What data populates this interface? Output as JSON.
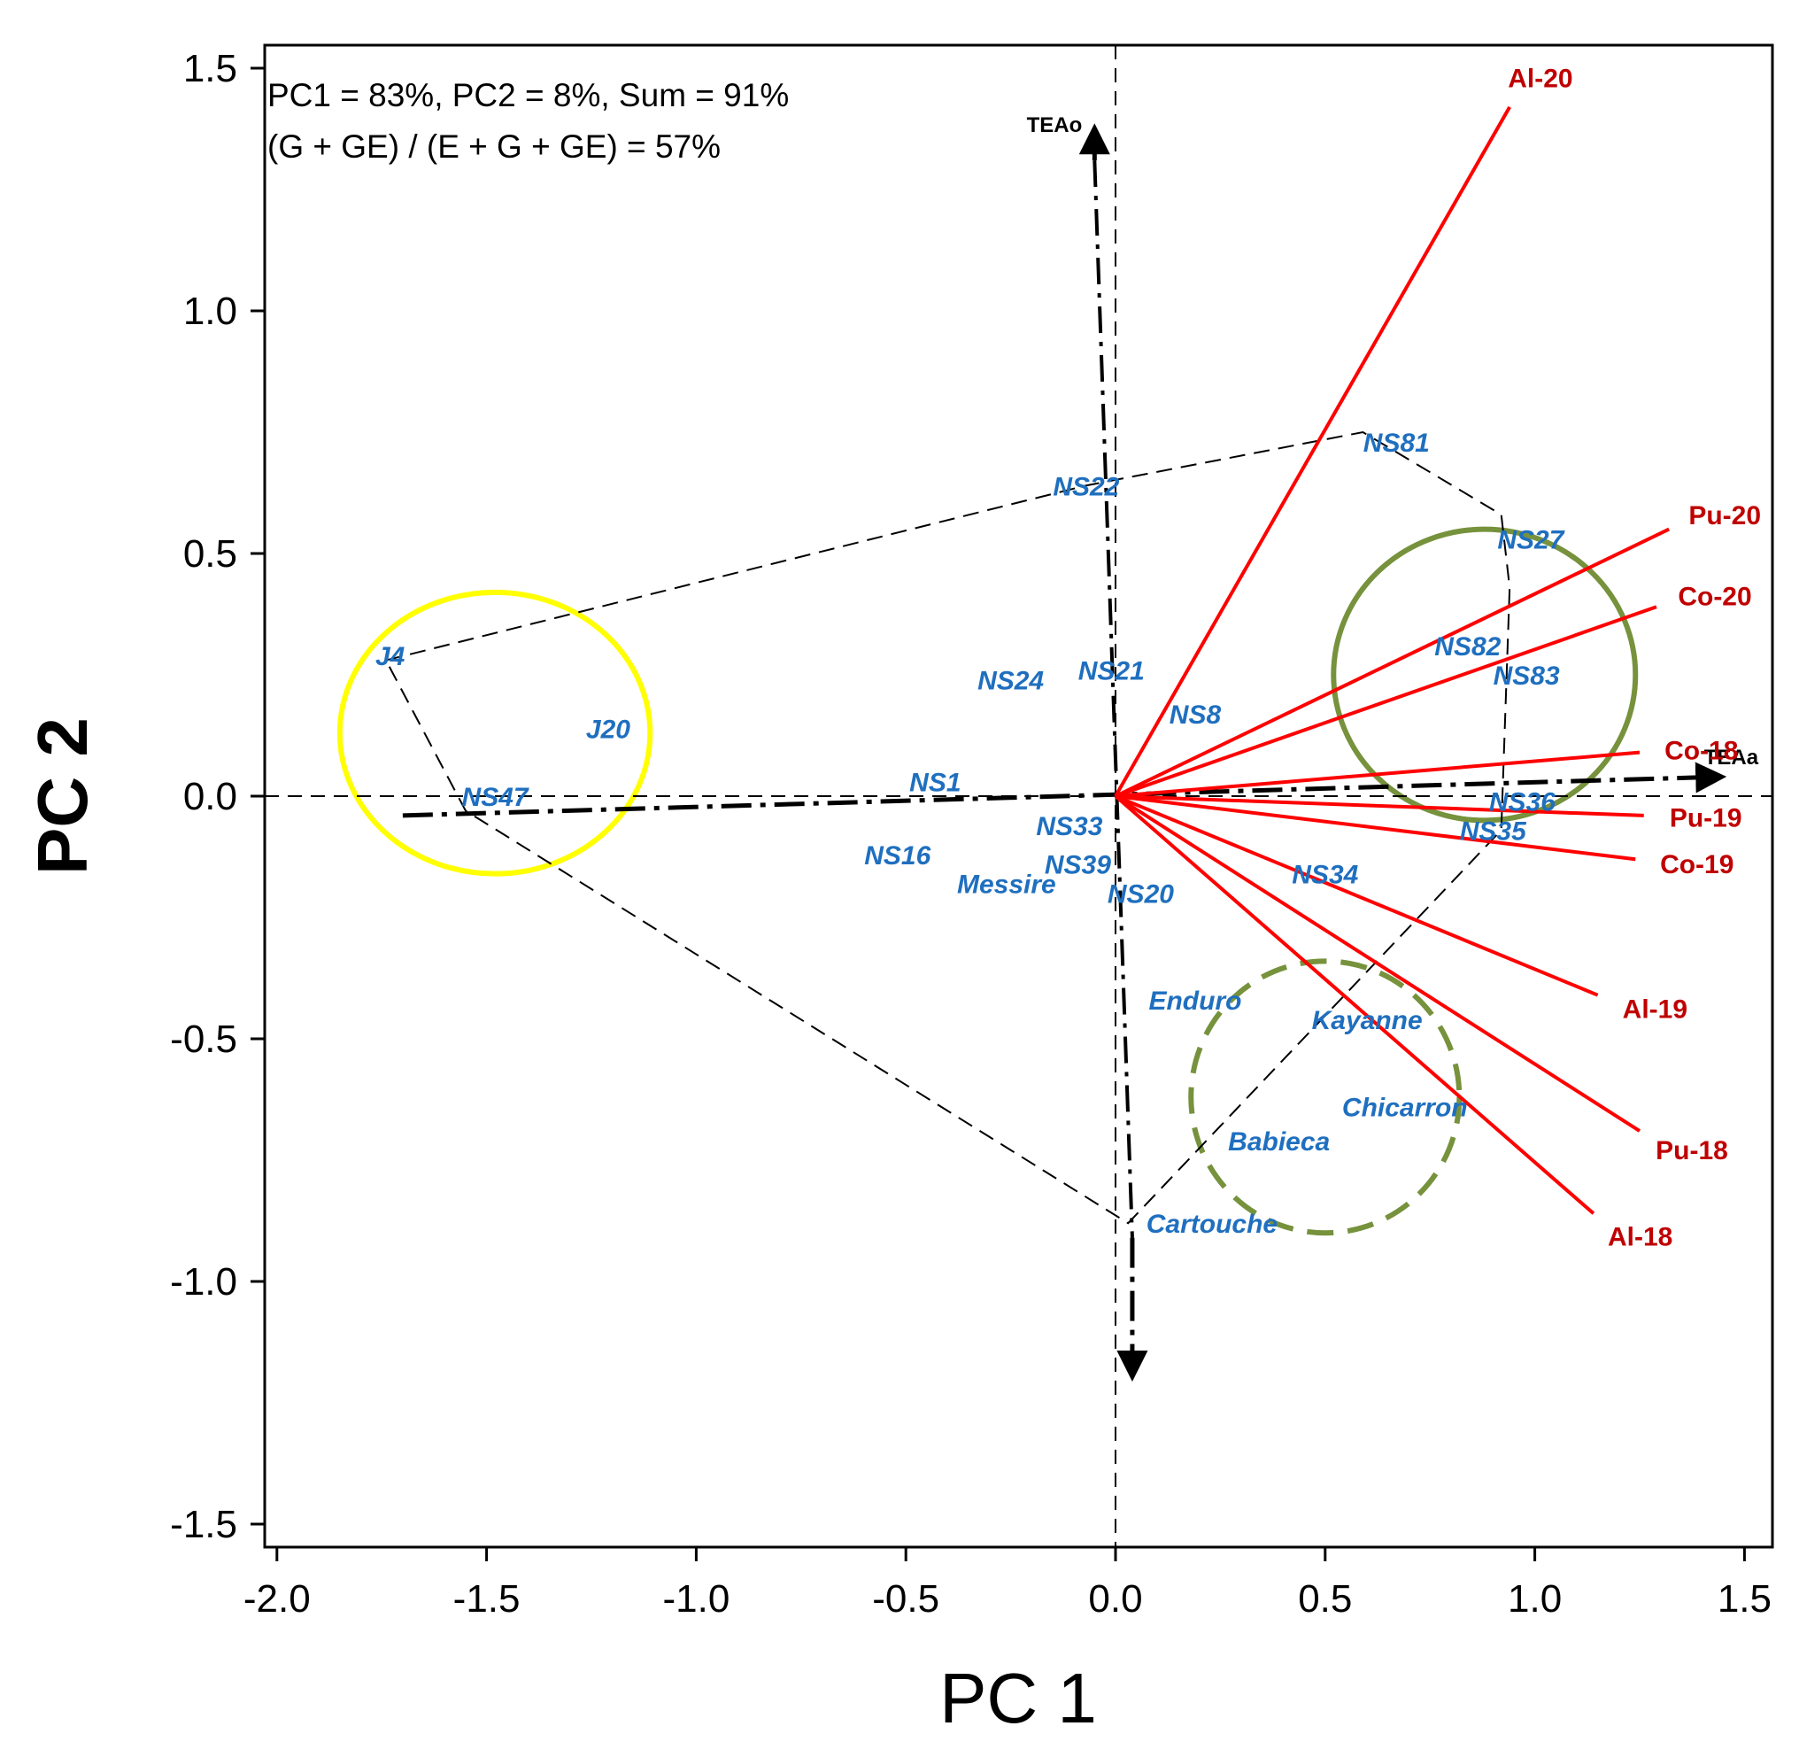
{
  "chart_data": {
    "type": "scatter",
    "subtype": "GGE biplot",
    "xlabel": "PC 1",
    "ylabel": "PC 2",
    "xlim": [
      -2.03,
      1.55
    ],
    "ylim": [
      -1.55,
      1.55
    ],
    "xticks": [
      "-2.0",
      "-1.5",
      "-1.0",
      "-0.5",
      "0.0",
      "0.5",
      "1.0",
      "1.5"
    ],
    "yticks": [
      "1.5",
      "1.0",
      "0.5",
      "0.0",
      "-0.5",
      "-1.0",
      "-1.5"
    ],
    "annotations": [
      "PC1 =  83%, PC2 = 8%, Sum = 91%",
      "(G + GE) / (E + G + GE) = 57%"
    ],
    "genotypes": [
      {
        "label": "J4",
        "x": -1.73,
        "y": 0.29
      },
      {
        "label": "J20",
        "x": -1.21,
        "y": 0.14
      },
      {
        "label": "NS47",
        "x": -1.48,
        "y": 0.0
      },
      {
        "label": "NS1",
        "x": -0.43,
        "y": 0.03
      },
      {
        "label": "NS16",
        "x": -0.52,
        "y": -0.12
      },
      {
        "label": "Messire",
        "x": -0.26,
        "y": -0.18
      },
      {
        "label": "NS33",
        "x": -0.11,
        "y": -0.06
      },
      {
        "label": "NS39",
        "x": -0.09,
        "y": -0.14
      },
      {
        "label": "NS20",
        "x": 0.06,
        "y": -0.2
      },
      {
        "label": "NS22",
        "x": -0.07,
        "y": 0.64
      },
      {
        "label": "NS24",
        "x": -0.25,
        "y": 0.24
      },
      {
        "label": "NS21",
        "x": -0.01,
        "y": 0.26
      },
      {
        "label": "NS8",
        "x": 0.19,
        "y": 0.17
      },
      {
        "label": "NS81",
        "x": 0.67,
        "y": 0.73
      },
      {
        "label": "NS27",
        "x": 0.99,
        "y": 0.53
      },
      {
        "label": "NS82",
        "x": 0.84,
        "y": 0.31
      },
      {
        "label": "NS83",
        "x": 0.98,
        "y": 0.25
      },
      {
        "label": "NS36",
        "x": 0.97,
        "y": -0.01
      },
      {
        "label": "NS35",
        "x": 0.9,
        "y": -0.07
      },
      {
        "label": "NS34",
        "x": 0.5,
        "y": -0.16
      },
      {
        "label": "Enduro",
        "x": 0.19,
        "y": -0.42
      },
      {
        "label": "Kayanne",
        "x": 0.6,
        "y": -0.46
      },
      {
        "label": "Chicarron",
        "x": 0.69,
        "y": -0.64
      },
      {
        "label": "Babieca",
        "x": 0.39,
        "y": -0.71
      },
      {
        "label": "Cartouche",
        "x": 0.23,
        "y": -0.88
      }
    ],
    "environments": [
      {
        "label": "Al-20",
        "x": 0.94,
        "y": 1.42
      },
      {
        "label": "Pu-20",
        "x": 1.32,
        "y": 0.55
      },
      {
        "label": "Co-20",
        "x": 1.29,
        "y": 0.39
      },
      {
        "label": "Co-18",
        "x": 1.25,
        "y": 0.09
      },
      {
        "label": "Pu-19",
        "x": 1.26,
        "y": -0.04
      },
      {
        "label": "Co-19",
        "x": 1.24,
        "y": -0.13
      },
      {
        "label": "Al-19",
        "x": 1.15,
        "y": -0.41
      },
      {
        "label": "Pu-18",
        "x": 1.25,
        "y": -0.69
      },
      {
        "label": "Al-18",
        "x": 1.14,
        "y": -0.86
      }
    ],
    "polygon_vertices": [
      [
        -1.74,
        0.28
      ],
      [
        -0.07,
        0.64
      ],
      [
        0.59,
        0.75
      ],
      [
        0.92,
        0.58
      ],
      [
        0.94,
        0.43
      ],
      [
        0.92,
        -0.07
      ],
      [
        0.03,
        -0.88
      ],
      [
        -1.55,
        -0.03
      ]
    ],
    "axis_arrows": [
      {
        "label": "TEAa",
        "from": [
          -1.7,
          -0.04
        ],
        "to": [
          1.45,
          0.04
        ]
      },
      {
        "label": "TEAo",
        "from": [
          -0.05,
          1.31
        ],
        "to": [
          -0.05,
          1.38
        ]
      },
      {
        "label": "",
        "from": [
          0.04,
          -0.91
        ],
        "to": [
          0.04,
          -1.2
        ]
      }
    ],
    "ellipses": [
      {
        "color": "yellow",
        "style": "solid",
        "cx": -1.48,
        "cy": 0.13,
        "rx": 0.37,
        "ry": 0.29
      },
      {
        "color": "olive green",
        "style": "solid",
        "cx": 0.88,
        "cy": 0.25,
        "rx": 0.36,
        "ry": 0.3
      },
      {
        "color": "olive green",
        "style": "dashed",
        "cx": 0.5,
        "cy": -0.62,
        "rx": 0.32,
        "ry": 0.28
      }
    ],
    "colors": {
      "genotype": "#1f6fbf",
      "environment": "#c00000",
      "vector": "#ff0000",
      "yellow_circle": "#ffff00",
      "green_circle": "#76923c"
    }
  }
}
